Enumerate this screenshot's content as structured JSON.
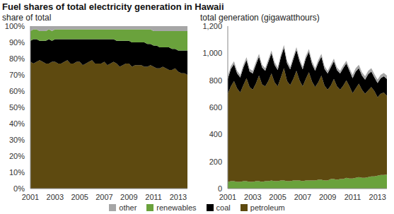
{
  "title": "Fuel shares of total electricity generation in Hawaii",
  "chart_data": [
    {
      "type": "area",
      "stacked": true,
      "y_label": "share of total",
      "legend": "bottom",
      "grid": false,
      "x": [
        2001,
        2001.25,
        2001.5,
        2001.75,
        2002,
        2002.25,
        2002.5,
        2002.75,
        2003,
        2003.25,
        2003.5,
        2003.75,
        2004,
        2004.25,
        2004.5,
        2004.75,
        2005,
        2005.25,
        2005.5,
        2005.75,
        2006,
        2006.25,
        2006.5,
        2006.75,
        2007,
        2007.25,
        2007.5,
        2007.75,
        2008,
        2008.25,
        2008.5,
        2008.75,
        2009,
        2009.25,
        2009.5,
        2009.75,
        2010,
        2010.25,
        2010.5,
        2010.75,
        2011,
        2011.25,
        2011.5,
        2011.75,
        2012,
        2012.25,
        2012.5,
        2012.75,
        2013,
        2013.25,
        2013.5,
        2013.75
      ],
      "xlim": [
        2001,
        2013.75
      ],
      "xticks": [
        2001,
        2003,
        2005,
        2007,
        2009,
        2011,
        2013
      ],
      "ylim": [
        0,
        100
      ],
      "yticks": [
        {
          "value": 0,
          "label": "0%"
        },
        {
          "value": 10,
          "label": "10%"
        },
        {
          "value": 20,
          "label": "20%"
        },
        {
          "value": 30,
          "label": "30%"
        },
        {
          "value": 40,
          "label": "40%"
        },
        {
          "value": 50,
          "label": "50%"
        },
        {
          "value": 60,
          "label": "60%"
        },
        {
          "value": 70,
          "label": "70%"
        },
        {
          "value": 80,
          "label": "80%"
        },
        {
          "value": 90,
          "label": "90%"
        },
        {
          "value": 100,
          "label": "100%"
        }
      ],
      "series": [
        {
          "name": "petroleum",
          "color": "#5e4a10",
          "values": [
            78,
            77,
            78,
            79,
            78,
            77,
            77,
            78,
            78,
            77,
            77,
            78,
            79,
            77,
            77,
            78,
            78,
            76,
            77,
            78,
            79,
            77,
            77,
            77,
            78,
            76,
            77,
            78,
            77,
            75,
            76,
            77,
            77,
            75,
            76,
            76,
            76,
            75,
            75,
            76,
            75,
            74,
            74,
            75,
            74,
            73,
            73,
            74,
            72,
            71,
            71,
            70
          ]
        },
        {
          "name": "coal",
          "color": "#000000",
          "values": [
            13,
            15,
            14,
            12,
            13,
            14,
            15,
            13,
            14,
            15,
            15,
            14,
            13,
            15,
            15,
            14,
            14,
            16,
            15,
            14,
            13,
            15,
            15,
            15,
            14,
            16,
            15,
            14,
            14,
            16,
            15,
            14,
            14,
            15,
            14,
            14,
            14,
            15,
            14,
            13,
            13,
            14,
            13,
            12,
            13,
            14,
            13,
            12,
            13,
            14,
            14,
            15
          ]
        },
        {
          "name": "renewables",
          "color": "#6aa23c",
          "values": [
            6,
            6,
            6,
            6,
            6,
            6,
            6,
            6,
            6,
            6,
            6,
            6,
            6,
            6,
            6,
            6,
            6,
            6,
            6,
            6,
            6,
            6,
            6,
            6,
            6,
            6,
            6,
            6,
            7,
            7,
            7,
            7,
            7,
            8,
            8,
            8,
            8,
            8,
            9,
            9,
            9,
            9,
            10,
            10,
            10,
            10,
            11,
            11,
            12,
            12,
            12,
            12
          ]
        },
        {
          "name": "other",
          "color": "#a6a6a6",
          "values": [
            3,
            2,
            2,
            3,
            3,
            3,
            2,
            3,
            2,
            2,
            2,
            2,
            2,
            2,
            2,
            2,
            2,
            2,
            2,
            2,
            2,
            2,
            2,
            2,
            2,
            2,
            2,
            2,
            2,
            2,
            2,
            2,
            2,
            2,
            2,
            2,
            2,
            2,
            2,
            2,
            3,
            3,
            3,
            3,
            3,
            3,
            3,
            3,
            3,
            3,
            3,
            3
          ]
        }
      ]
    },
    {
      "type": "area",
      "stacked": true,
      "y_label": "total generation (gigawatthours)",
      "grid": false,
      "x": [
        2001,
        2001.25,
        2001.5,
        2001.75,
        2002,
        2002.25,
        2002.5,
        2002.75,
        2003,
        2003.25,
        2003.5,
        2003.75,
        2004,
        2004.25,
        2004.5,
        2004.75,
        2005,
        2005.25,
        2005.5,
        2005.75,
        2006,
        2006.25,
        2006.5,
        2006.75,
        2007,
        2007.25,
        2007.5,
        2007.75,
        2008,
        2008.25,
        2008.5,
        2008.75,
        2009,
        2009.25,
        2009.5,
        2009.75,
        2010,
        2010.25,
        2010.5,
        2010.75,
        2011,
        2011.25,
        2011.5,
        2011.75,
        2012,
        2012.25,
        2012.5,
        2012.75,
        2013,
        2013.25,
        2013.5,
        2013.75
      ],
      "xlim": [
        2001,
        2013.75
      ],
      "xticks": [
        2001,
        2003,
        2005,
        2007,
        2009,
        2011,
        2013
      ],
      "ylim": [
        0,
        1200
      ],
      "yticks": [
        0,
        200,
        400,
        600,
        800,
        {
          "value": 1000,
          "label": "1,000"
        },
        {
          "value": 1200,
          "label": "1,200"
        }
      ],
      "series": [
        {
          "name": "renewables",
          "color": "#6aa23c",
          "values": [
            50,
            55,
            55,
            50,
            50,
            55,
            55,
            50,
            50,
            55,
            55,
            50,
            55,
            55,
            60,
            55,
            55,
            60,
            60,
            55,
            55,
            60,
            60,
            60,
            55,
            60,
            60,
            60,
            60,
            65,
            65,
            60,
            60,
            70,
            70,
            65,
            70,
            70,
            80,
            75,
            75,
            80,
            85,
            80,
            80,
            85,
            90,
            90,
            95,
            100,
            100,
            105
          ]
        },
        {
          "name": "petroleum",
          "color": "#5e4a10",
          "values": [
            650,
            700,
            740,
            690,
            660,
            710,
            760,
            700,
            680,
            720,
            780,
            720,
            700,
            740,
            790,
            730,
            700,
            760,
            830,
            740,
            710,
            750,
            810,
            740,
            700,
            750,
            800,
            730,
            690,
            720,
            770,
            700,
            670,
            690,
            740,
            690,
            660,
            690,
            720,
            680,
            630,
            660,
            690,
            650,
            620,
            640,
            660,
            630,
            580,
            600,
            610,
            580
          ]
        },
        {
          "name": "coal",
          "color": "#000000",
          "values": [
            110,
            130,
            125,
            110,
            110,
            130,
            135,
            115,
            120,
            140,
            140,
            125,
            115,
            140,
            150,
            130,
            120,
            150,
            150,
            130,
            115,
            145,
            155,
            140,
            125,
            150,
            150,
            130,
            120,
            145,
            140,
            125,
            120,
            135,
            130,
            120,
            120,
            130,
            125,
            115,
            110,
            125,
            115,
            105,
            105,
            120,
            115,
            100,
            105,
            115,
            120,
            125
          ]
        },
        {
          "name": "other",
          "color": "#a6a6a6",
          "values": [
            20,
            20,
            20,
            20,
            20,
            20,
            20,
            20,
            20,
            20,
            20,
            20,
            20,
            20,
            20,
            20,
            20,
            20,
            20,
            20,
            20,
            20,
            20,
            20,
            20,
            20,
            20,
            20,
            20,
            20,
            20,
            20,
            20,
            20,
            20,
            20,
            20,
            20,
            20,
            20,
            25,
            25,
            25,
            25,
            25,
            25,
            25,
            25,
            25,
            25,
            25,
            25
          ]
        }
      ]
    }
  ]
}
